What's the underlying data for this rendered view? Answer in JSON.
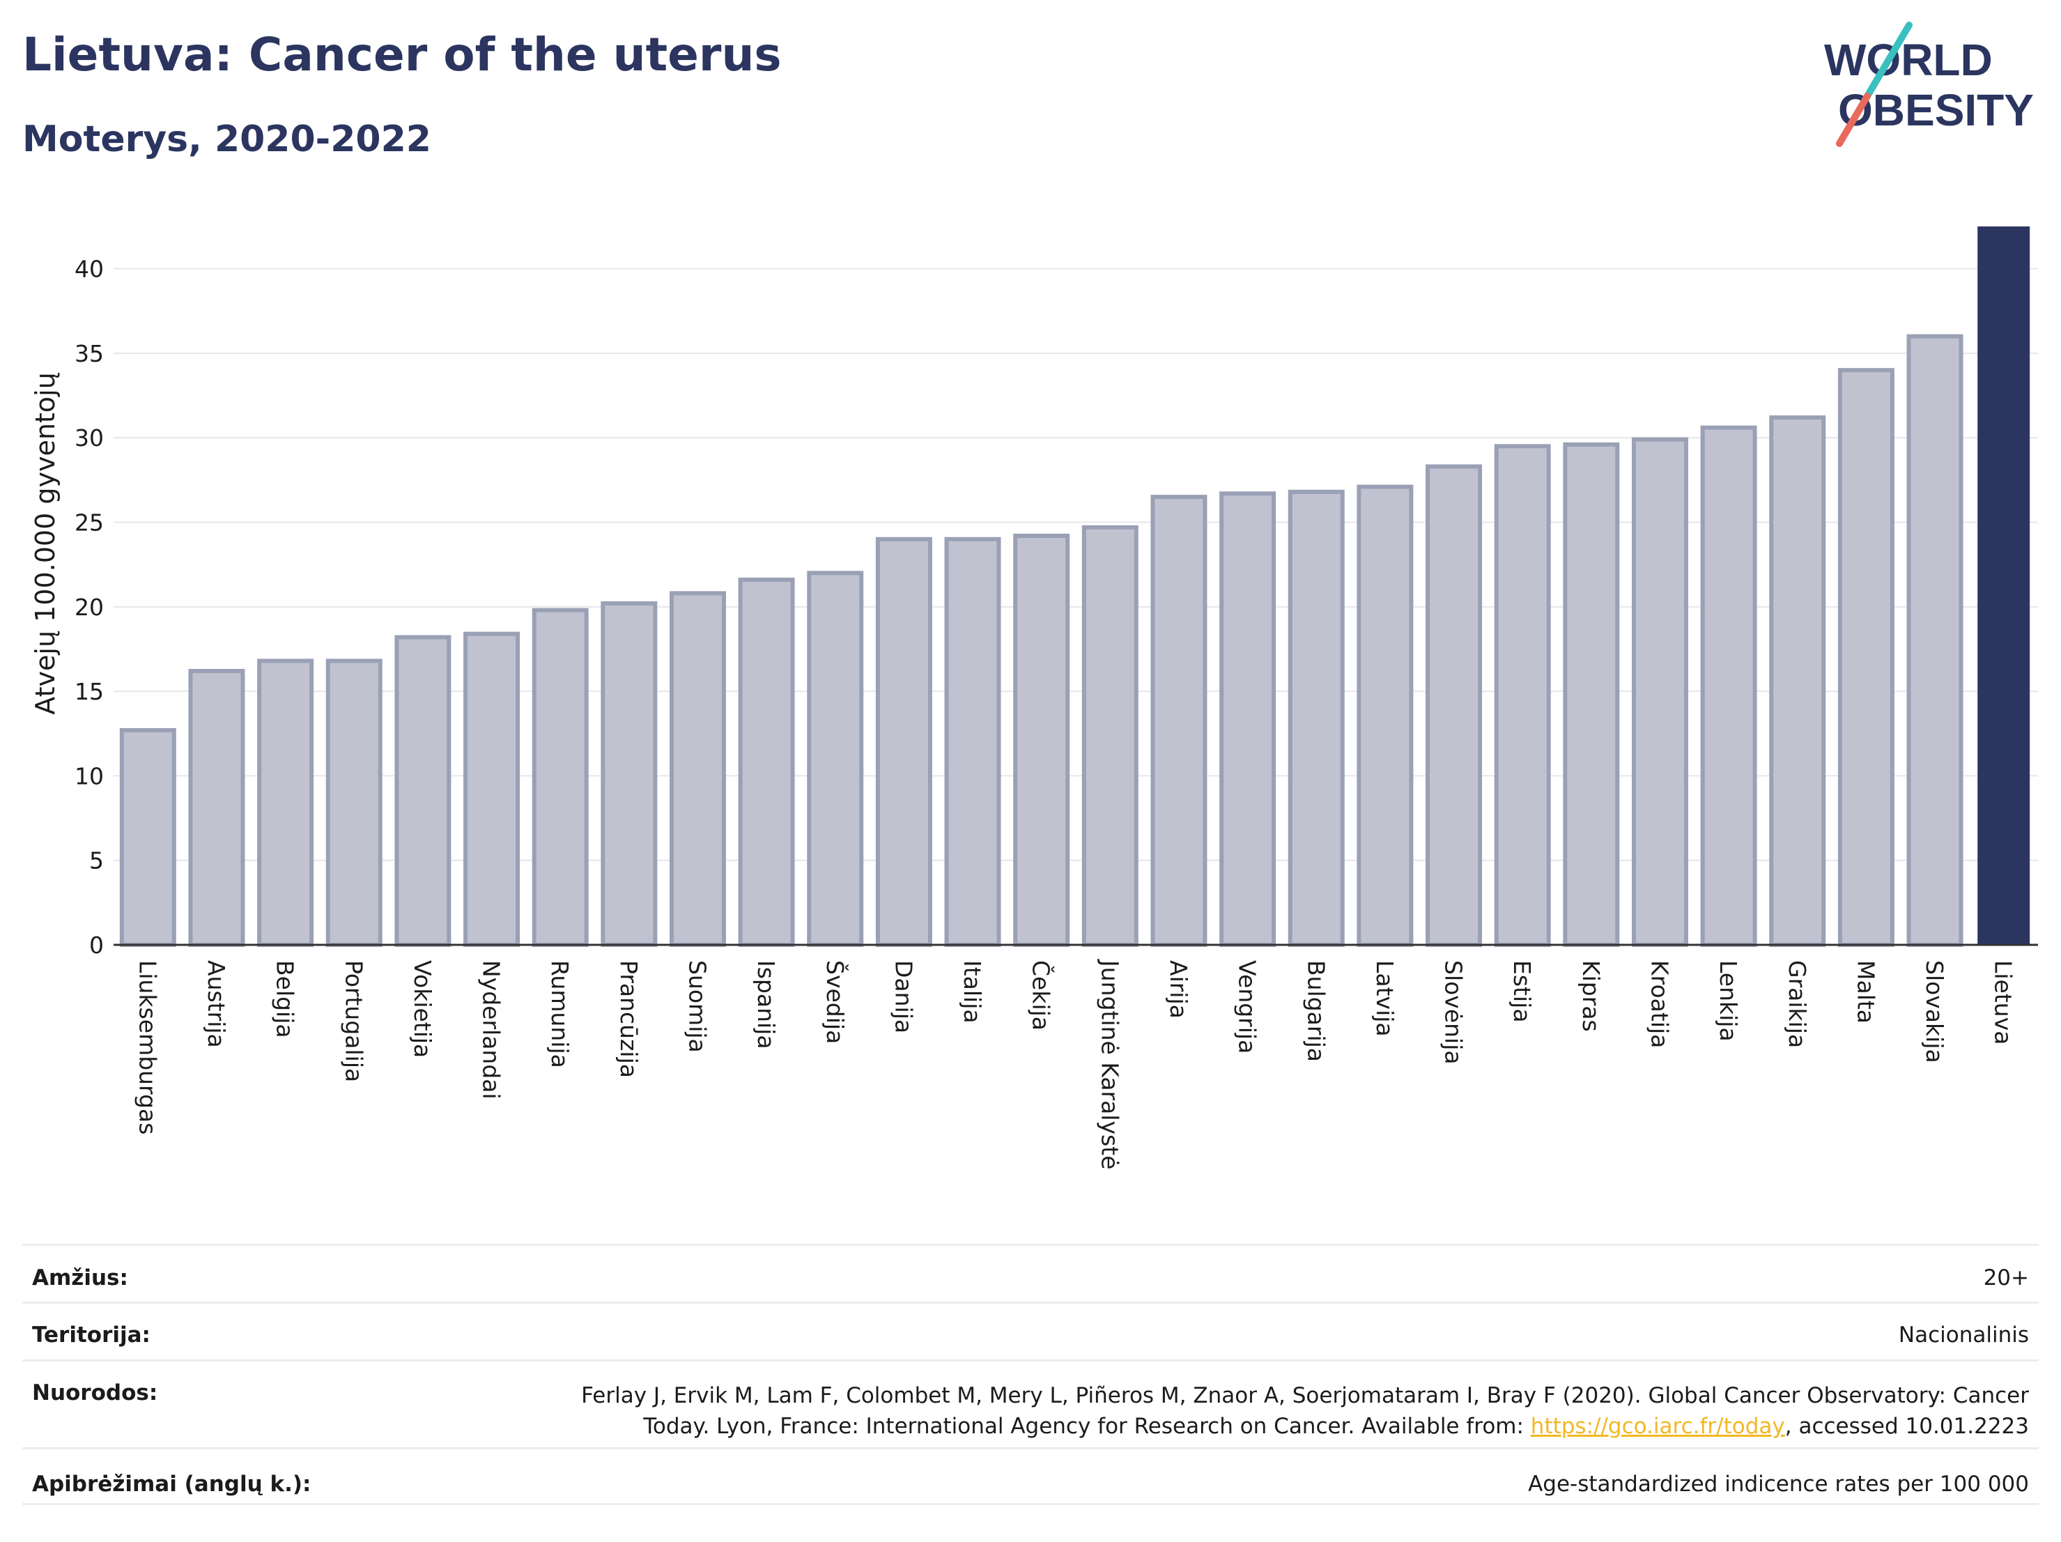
{
  "header": {
    "title": "Lietuva: Cancer of the uterus",
    "subtitle": "Moterys, 2020-2022"
  },
  "logo": {
    "line1": "WORLD",
    "line2": "OBESITY"
  },
  "chart_data": {
    "type": "bar",
    "ylabel": "Atvejų 100.000 gyventojų",
    "ylim": [
      0,
      42.5
    ],
    "yticks": [
      0,
      5,
      10,
      15,
      20,
      25,
      30,
      35,
      40
    ],
    "grid": true,
    "categories": [
      "Liuksemburgas",
      "Austrija",
      "Belgija",
      "Portugalija",
      "Vokietija",
      "Nyderlandai",
      "Rumunija",
      "Prancūzija",
      "Suomija",
      "Ispanija",
      "Švedija",
      "Danija",
      "Italija",
      "Čekija",
      "Jungtinė Karalystė",
      "Airija",
      "Vengrija",
      "Bulgarija",
      "Latvija",
      "Slovėnija",
      "Estija",
      "Kipras",
      "Kroatija",
      "Lenkija",
      "Graikija",
      "Malta",
      "Slovakija",
      "Lietuva"
    ],
    "values": [
      12.7,
      16.2,
      16.8,
      16.8,
      18.2,
      18.4,
      19.8,
      20.2,
      20.8,
      21.6,
      22.0,
      24.0,
      24.0,
      24.2,
      24.7,
      26.5,
      26.7,
      26.8,
      27.1,
      28.3,
      29.5,
      29.6,
      29.9,
      30.6,
      31.2,
      34.0,
      36.0,
      42.5
    ],
    "highlight": "Lietuva",
    "colors": {
      "bar": "#c0c3cf",
      "bar_outline": "#9aa0b5",
      "highlight": "#2b3560",
      "axis": "#333333",
      "grid": "#e6e6ec"
    }
  },
  "info": {
    "age_label": "Amžius:",
    "age_value": "20+",
    "territory_label": "Teritorija:",
    "territory_value": "Nacionalinis",
    "refs_label": "Nuorodos:",
    "refs_text_before": "Ferlay J, Ervik M, Lam F, Colombet M, Mery L, Piñeros M, Znaor A, Soerjomataram I, Bray F (2020). Global Cancer Observatory: Cancer Today. Lyon, France: International Agency for Research on Cancer. Available from: ",
    "refs_link": "https://gco.iarc.fr/today",
    "refs_text_after": ", accessed 10.01.2223",
    "defs_label": "Apibrėžimai (anglų k.):",
    "defs_value": "Age-standardized indicence rates per 100 000"
  }
}
